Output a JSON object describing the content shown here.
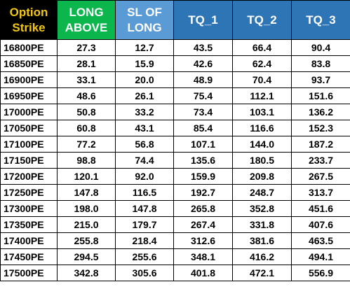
{
  "table": {
    "headers": [
      {
        "line1": "Option",
        "line2": "Strike"
      },
      {
        "line1": "LONG",
        "line2": "ABOVE"
      },
      {
        "line1": "SL OF",
        "line2": "LONG"
      },
      {
        "line1": "TQ_1",
        "line2": ""
      },
      {
        "line1": "TQ_2",
        "line2": ""
      },
      {
        "line1": "TQ_3",
        "line2": ""
      }
    ],
    "header_colors": {
      "strike_bg": "#000000",
      "strike_text": "#f2c70e",
      "long_bg": "#0bb64d",
      "sl_bg": "#5b9bd5",
      "tq_bg": "#2e75b6"
    },
    "rows": [
      [
        "16800PE",
        "27.3",
        "12.7",
        "43.5",
        "66.4",
        "90.4"
      ],
      [
        "16850PE",
        "28.1",
        "15.9",
        "42.6",
        "62.4",
        "83.8"
      ],
      [
        "16900PE",
        "33.1",
        "20.0",
        "48.9",
        "70.4",
        "93.7"
      ],
      [
        "16950PE",
        "48.6",
        "26.1",
        "75.4",
        "112.1",
        "151.6"
      ],
      [
        "17000PE",
        "50.8",
        "33.2",
        "73.4",
        "103.1",
        "136.2"
      ],
      [
        "17050PE",
        "60.8",
        "43.1",
        "85.4",
        "116.6",
        "152.3"
      ],
      [
        "17100PE",
        "77.2",
        "56.8",
        "107.1",
        "144.0",
        "187.2"
      ],
      [
        "17150PE",
        "98.8",
        "74.4",
        "135.6",
        "180.5",
        "233.7"
      ],
      [
        "17200PE",
        "120.1",
        "92.0",
        "159.9",
        "209.8",
        "267.5"
      ],
      [
        "17250PE",
        "147.8",
        "116.5",
        "192.7",
        "248.7",
        "313.7"
      ],
      [
        "17300PE",
        "198.0",
        "147.8",
        "265.8",
        "352.8",
        "451.6"
      ],
      [
        "17350PE",
        "215.0",
        "179.7",
        "267.4",
        "331.8",
        "407.6"
      ],
      [
        "17400PE",
        "255.8",
        "218.4",
        "312.6",
        "381.6",
        "463.5"
      ],
      [
        "17450PE",
        "294.5",
        "255.6",
        "348.1",
        "416.2",
        "494.1"
      ],
      [
        "17500PE",
        "342.8",
        "305.6",
        "401.8",
        "472.1",
        "556.9"
      ]
    ]
  }
}
